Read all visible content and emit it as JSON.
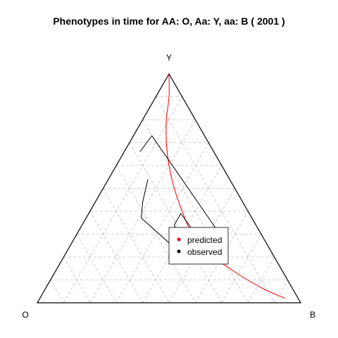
{
  "chart_data": {
    "type": "ternary",
    "title": "Phenotypes in time for  AA: O, Aa: Y, aa: B  ( 2001 )",
    "vertices": {
      "left": "O",
      "top": "Y",
      "right": "B"
    },
    "grid": true,
    "grid_step": 0.1,
    "legend": {
      "placement": "lower-right",
      "entries": [
        "predicted",
        "observed"
      ]
    },
    "colors": {
      "predicted": "#ff0000",
      "observed": "#000000",
      "grid": "#bebebe",
      "frame": "#000000"
    },
    "series": [
      {
        "name": "predicted",
        "points": [
          {
            "O": 0.0,
            "Y": 1.0,
            "B": 0.0
          },
          {
            "O": 0.05,
            "Y": 0.9,
            "B": 0.05
          },
          {
            "O": 0.11,
            "Y": 0.8,
            "B": 0.09
          },
          {
            "O": 0.16,
            "Y": 0.7,
            "B": 0.14
          },
          {
            "O": 0.2,
            "Y": 0.6,
            "B": 0.2
          },
          {
            "O": 0.23,
            "Y": 0.5,
            "B": 0.27
          },
          {
            "O": 0.25,
            "Y": 0.4,
            "B": 0.35
          },
          {
            "O": 0.26,
            "Y": 0.3,
            "B": 0.44
          },
          {
            "O": 0.23,
            "Y": 0.2,
            "B": 0.57
          },
          {
            "O": 0.17,
            "Y": 0.12,
            "B": 0.71
          },
          {
            "O": 0.11,
            "Y": 0.06,
            "B": 0.83
          },
          {
            "O": 0.05,
            "Y": 0.02,
            "B": 0.93
          }
        ]
      },
      {
        "name": "observed",
        "points": [
          {
            "O": 0.28,
            "Y": 0.66,
            "B": 0.06
          },
          {
            "O": 0.2,
            "Y": 0.73,
            "B": 0.07
          },
          {
            "O": 0.16,
            "Y": 0.33,
            "B": 0.51
          },
          {
            "O": 0.25,
            "Y": 0.31,
            "B": 0.44
          },
          {
            "O": 0.26,
            "Y": 0.39,
            "B": 0.35
          },
          {
            "O": 0.31,
            "Y": 0.34,
            "B": 0.35
          },
          {
            "O": 0.33,
            "Y": 0.18,
            "B": 0.49
          },
          {
            "O": 0.42,
            "Y": 0.37,
            "B": 0.21
          },
          {
            "O": 0.38,
            "Y": 0.44,
            "B": 0.18
          },
          {
            "O": 0.31,
            "Y": 0.54,
            "B": 0.15
          }
        ]
      }
    ]
  }
}
